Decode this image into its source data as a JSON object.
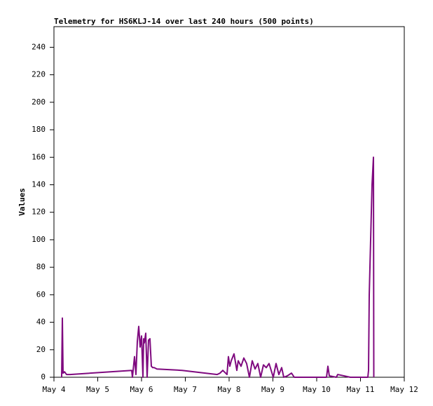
{
  "chart_data": {
    "type": "line",
    "title": "Telemetry for HS6KLJ-14 over last 240 hours (500 points)",
    "y_label": "Values",
    "x": [
      4.176,
      4.192,
      4.208,
      4.24,
      4.288,
      4.368,
      5.776,
      5.792,
      5.84,
      5.872,
      5.904,
      5.936,
      5.968,
      6.0,
      6.032,
      6.048,
      6.064,
      6.096,
      6.128,
      6.16,
      6.192,
      6.224,
      6.256,
      6.288,
      6.352,
      6.928,
      7.728,
      7.792,
      7.856,
      7.952,
      7.984,
      8.016,
      8.048,
      8.112,
      8.176,
      8.208,
      8.272,
      8.336,
      8.4,
      8.464,
      8.528,
      8.592,
      8.656,
      8.72,
      8.784,
      8.848,
      8.912,
      9.008,
      9.072,
      9.136,
      9.2,
      9.248,
      9.328,
      9.424,
      9.488,
      9.808,
      10.224,
      10.256,
      10.288,
      10.448,
      10.48,
      10.768,
      11.168,
      11.184,
      11.2,
      11.216,
      11.248,
      11.264,
      11.28,
      11.296,
      11.304
    ],
    "series": [
      {
        "name": "Values",
        "color": "#7f0a7f",
        "values": [
          0,
          43,
          3,
          4,
          2,
          2,
          5,
          0,
          15,
          2,
          26,
          37,
          22,
          30,
          0,
          28,
          25,
          32,
          0,
          27,
          28,
          8,
          7,
          7,
          6,
          5,
          2,
          3,
          5,
          2,
          15,
          8,
          12,
          17,
          5,
          12,
          8,
          14,
          10,
          0,
          12,
          6,
          10,
          0,
          9,
          7,
          10,
          0,
          10,
          2,
          7,
          0,
          1,
          3,
          0,
          0,
          0,
          8,
          1,
          0,
          2,
          0,
          0,
          5,
          60,
          80,
          120,
          140,
          150,
          160,
          0
        ]
      }
    ],
    "xlim": [
      4,
      12
    ],
    "xticks": [
      {
        "value": 4,
        "label": "May 4"
      },
      {
        "value": 5,
        "label": "May 5"
      },
      {
        "value": 6,
        "label": "May 6"
      },
      {
        "value": 7,
        "label": "May 7"
      },
      {
        "value": 8,
        "label": "May 8"
      },
      {
        "value": 9,
        "label": "May 9"
      },
      {
        "value": 10,
        "label": "May 10"
      },
      {
        "value": 11,
        "label": "May 11"
      },
      {
        "value": 12,
        "label": "May 12"
      }
    ],
    "ylim": [
      0,
      255
    ],
    "yticks": [
      0,
      20,
      40,
      60,
      80,
      100,
      120,
      140,
      160,
      180,
      200,
      220,
      240
    ],
    "grid": false
  }
}
